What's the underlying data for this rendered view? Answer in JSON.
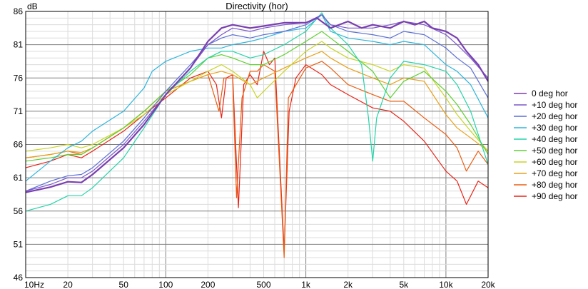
{
  "chart_data": {
    "type": "line",
    "title": "Directivity (hor)",
    "ylabel": "dB",
    "xscale": "log",
    "xlim": [
      10,
      20000
    ],
    "ylim": [
      46,
      86
    ],
    "y_ticks": [
      "46",
      "51",
      "56",
      "61",
      "66",
      "71",
      "76",
      "81",
      "86"
    ],
    "x_ticks": [
      {
        "value": 10,
        "label": "10Hz"
      },
      {
        "value": 20,
        "label": "20"
      },
      {
        "value": 50,
        "label": "50"
      },
      {
        "value": 100,
        "label": "100"
      },
      {
        "value": 200,
        "label": "200"
      },
      {
        "value": 500,
        "label": "500"
      },
      {
        "value": 1000,
        "label": "1k"
      },
      {
        "value": 2000,
        "label": "2k"
      },
      {
        "value": 5000,
        "label": "5k"
      },
      {
        "value": 10000,
        "label": "10k"
      },
      {
        "value": 20000,
        "label": "20k"
      }
    ],
    "grid": true,
    "legend_position": "right",
    "series": [
      {
        "name": "0 deg hor",
        "color": "#7a3fb0",
        "points": [
          [
            10,
            58.8
          ],
          [
            15,
            59.6
          ],
          [
            20,
            60.4
          ],
          [
            25,
            60.3
          ],
          [
            30,
            61.5
          ],
          [
            50,
            65.5
          ],
          [
            70,
            69
          ],
          [
            100,
            73.5
          ],
          [
            150,
            77.5
          ],
          [
            200,
            81.5
          ],
          [
            250,
            83.5
          ],
          [
            300,
            84
          ],
          [
            400,
            83.5
          ],
          [
            500,
            83.8
          ],
          [
            700,
            84.3
          ],
          [
            1000,
            84.3
          ],
          [
            1200,
            85
          ],
          [
            1500,
            83.5
          ],
          [
            2000,
            84.5
          ],
          [
            2500,
            83.5
          ],
          [
            3000,
            84
          ],
          [
            4000,
            83.5
          ],
          [
            5000,
            84.5
          ],
          [
            6000,
            84
          ],
          [
            7000,
            84.5
          ],
          [
            8000,
            83.5
          ],
          [
            10000,
            83
          ],
          [
            12000,
            82
          ],
          [
            14000,
            80
          ],
          [
            17000,
            78
          ],
          [
            20000,
            75.5
          ]
        ]
      },
      {
        "name": "+10 deg hor",
        "color": "#7b57c9",
        "points": [
          [
            10,
            59
          ],
          [
            15,
            60
          ],
          [
            20,
            61
          ],
          [
            25,
            61
          ],
          [
            30,
            62
          ],
          [
            50,
            66
          ],
          [
            70,
            69.5
          ],
          [
            100,
            73.5
          ],
          [
            150,
            77.5
          ],
          [
            200,
            81
          ],
          [
            250,
            82.5
          ],
          [
            300,
            83.5
          ],
          [
            400,
            83
          ],
          [
            500,
            83.5
          ],
          [
            700,
            84
          ],
          [
            1000,
            84.3
          ],
          [
            1300,
            85.5
          ],
          [
            1500,
            84
          ],
          [
            2000,
            83.5
          ],
          [
            3000,
            83.5
          ],
          [
            4000,
            84
          ],
          [
            5000,
            84.5
          ],
          [
            7000,
            84
          ],
          [
            10000,
            82.5
          ],
          [
            12000,
            81
          ],
          [
            15000,
            79
          ],
          [
            20000,
            76
          ]
        ]
      },
      {
        "name": "+20 deg hor",
        "color": "#5a6fd6",
        "points": [
          [
            10,
            59
          ],
          [
            15,
            60.5
          ],
          [
            20,
            61.3
          ],
          [
            25,
            61.5
          ],
          [
            30,
            62.5
          ],
          [
            50,
            66.5
          ],
          [
            70,
            70
          ],
          [
            100,
            74
          ],
          [
            150,
            78
          ],
          [
            200,
            81
          ],
          [
            250,
            82
          ],
          [
            300,
            82.5
          ],
          [
            400,
            82
          ],
          [
            500,
            82.5
          ],
          [
            700,
            83
          ],
          [
            1000,
            84
          ],
          [
            1300,
            85.5
          ],
          [
            1500,
            84
          ],
          [
            2000,
            83
          ],
          [
            3000,
            82.5
          ],
          [
            4000,
            82
          ],
          [
            5000,
            83
          ],
          [
            7000,
            82.5
          ],
          [
            10000,
            80.5
          ],
          [
            12000,
            79
          ],
          [
            15000,
            77.5
          ],
          [
            20000,
            73
          ]
        ]
      },
      {
        "name": "+30 deg hor",
        "color": "#2cb5dc",
        "points": [
          [
            10,
            60.5
          ],
          [
            15,
            63.5
          ],
          [
            20,
            65.5
          ],
          [
            25,
            66.5
          ],
          [
            30,
            68
          ],
          [
            50,
            71
          ],
          [
            70,
            74.5
          ],
          [
            80,
            77
          ],
          [
            100,
            78.5
          ],
          [
            150,
            80
          ],
          [
            200,
            80.5
          ],
          [
            250,
            80.5
          ],
          [
            300,
            81
          ],
          [
            400,
            81.5
          ],
          [
            500,
            82
          ],
          [
            700,
            83
          ],
          [
            1000,
            83.5
          ],
          [
            1300,
            85.5
          ],
          [
            1500,
            83
          ],
          [
            2000,
            82
          ],
          [
            3000,
            81.5
          ],
          [
            4000,
            81
          ],
          [
            5000,
            81.5
          ],
          [
            7000,
            81
          ],
          [
            10000,
            78
          ],
          [
            12000,
            77
          ],
          [
            15000,
            75
          ],
          [
            20000,
            70
          ]
        ]
      },
      {
        "name": "+40 deg hor",
        "color": "#22d4a8",
        "points": [
          [
            10,
            56
          ],
          [
            15,
            57
          ],
          [
            20,
            58.3
          ],
          [
            25,
            58.3
          ],
          [
            30,
            59.5
          ],
          [
            50,
            64
          ],
          [
            70,
            68.5
          ],
          [
            100,
            73.5
          ],
          [
            150,
            77
          ],
          [
            200,
            79
          ],
          [
            250,
            80
          ],
          [
            300,
            80
          ],
          [
            400,
            79
          ],
          [
            500,
            79.5
          ],
          [
            700,
            81
          ],
          [
            1000,
            83
          ],
          [
            1300,
            85.8
          ],
          [
            1500,
            83.5
          ],
          [
            2000,
            81
          ],
          [
            2500,
            78
          ],
          [
            2800,
            70
          ],
          [
            3000,
            63.5
          ],
          [
            3200,
            70
          ],
          [
            4000,
            76
          ],
          [
            5000,
            78.5
          ],
          [
            7000,
            78
          ],
          [
            10000,
            77
          ],
          [
            12000,
            75
          ],
          [
            15000,
            71
          ],
          [
            20000,
            63
          ]
        ]
      },
      {
        "name": "+50 deg hor",
        "color": "#5ed030",
        "points": [
          [
            10,
            63.5
          ],
          [
            15,
            64
          ],
          [
            20,
            64.5
          ],
          [
            25,
            64.5
          ],
          [
            30,
            65.5
          ],
          [
            50,
            68.5
          ],
          [
            70,
            71
          ],
          [
            100,
            74
          ],
          [
            150,
            76.5
          ],
          [
            200,
            79
          ],
          [
            250,
            79.5
          ],
          [
            300,
            79
          ],
          [
            400,
            78
          ],
          [
            500,
            78
          ],
          [
            700,
            79.5
          ],
          [
            1000,
            81.5
          ],
          [
            1300,
            83
          ],
          [
            1500,
            82
          ],
          [
            2000,
            80
          ],
          [
            3000,
            77
          ],
          [
            4000,
            73
          ],
          [
            5000,
            75.5
          ],
          [
            7000,
            77
          ],
          [
            10000,
            74
          ],
          [
            12000,
            72
          ],
          [
            15000,
            69
          ],
          [
            20000,
            64.5
          ]
        ]
      },
      {
        "name": "+60 deg hor",
        "color": "#c8d425",
        "points": [
          [
            10,
            65
          ],
          [
            15,
            65.5
          ],
          [
            20,
            66
          ],
          [
            25,
            65.5
          ],
          [
            30,
            66
          ],
          [
            50,
            68.5
          ],
          [
            70,
            70.5
          ],
          [
            100,
            73.5
          ],
          [
            150,
            75.5
          ],
          [
            200,
            77
          ],
          [
            250,
            78
          ],
          [
            300,
            77
          ],
          [
            400,
            75
          ],
          [
            450,
            73
          ],
          [
            500,
            74
          ],
          [
            700,
            77
          ],
          [
            1000,
            80
          ],
          [
            1300,
            81.5
          ],
          [
            1500,
            80.5
          ],
          [
            2000,
            79
          ],
          [
            3000,
            78
          ],
          [
            4000,
            77
          ],
          [
            5000,
            78
          ],
          [
            7000,
            77.5
          ],
          [
            10000,
            73
          ],
          [
            12000,
            70.5
          ],
          [
            15000,
            68
          ],
          [
            20000,
            65
          ]
        ]
      },
      {
        "name": "+70 deg hor",
        "color": "#e8a018",
        "points": [
          [
            10,
            64
          ],
          [
            15,
            64.5
          ],
          [
            20,
            65
          ],
          [
            25,
            64.8
          ],
          [
            30,
            65.5
          ],
          [
            50,
            68.5
          ],
          [
            70,
            71
          ],
          [
            100,
            74
          ],
          [
            150,
            75.5
          ],
          [
            200,
            76.5
          ],
          [
            250,
            77
          ],
          [
            300,
            76.5
          ],
          [
            400,
            75
          ],
          [
            500,
            76
          ],
          [
            700,
            77.5
          ],
          [
            1000,
            79
          ],
          [
            1300,
            80
          ],
          [
            1500,
            79
          ],
          [
            2000,
            77.5
          ],
          [
            3000,
            76
          ],
          [
            4000,
            75
          ],
          [
            5000,
            76
          ],
          [
            7000,
            75.5
          ],
          [
            10000,
            70.5
          ],
          [
            12000,
            68.5
          ],
          [
            15000,
            67
          ],
          [
            20000,
            65
          ]
        ]
      },
      {
        "name": "+80 deg hor",
        "color": "#e85e12",
        "points": [
          [
            10,
            64
          ],
          [
            15,
            64.5
          ],
          [
            20,
            65
          ],
          [
            25,
            64.5
          ],
          [
            30,
            65.5
          ],
          [
            50,
            68.5
          ],
          [
            70,
            71
          ],
          [
            100,
            74
          ],
          [
            150,
            75.5
          ],
          [
            200,
            76.5
          ],
          [
            240,
            71
          ],
          [
            260,
            76
          ],
          [
            300,
            76
          ],
          [
            320,
            58
          ],
          [
            350,
            73
          ],
          [
            400,
            77
          ],
          [
            450,
            77
          ],
          [
            500,
            78
          ],
          [
            600,
            77
          ],
          [
            700,
            49
          ],
          [
            750,
            73
          ],
          [
            1000,
            77.5
          ],
          [
            1300,
            78.5
          ],
          [
            1500,
            77.5
          ],
          [
            2000,
            75
          ],
          [
            3000,
            73.5
          ],
          [
            4000,
            72.5
          ],
          [
            5000,
            72.5
          ],
          [
            7000,
            70
          ],
          [
            10000,
            67.5
          ],
          [
            12000,
            65.5
          ],
          [
            14000,
            62
          ],
          [
            17000,
            65
          ],
          [
            20000,
            63
          ]
        ]
      },
      {
        "name": "+90 deg hor",
        "color": "#e82418",
        "points": [
          [
            10,
            62.5
          ],
          [
            15,
            63.5
          ],
          [
            20,
            64.5
          ],
          [
            25,
            64
          ],
          [
            30,
            65
          ],
          [
            50,
            68
          ],
          [
            70,
            70.5
          ],
          [
            100,
            73
          ],
          [
            150,
            76
          ],
          [
            200,
            77
          ],
          [
            230,
            75
          ],
          [
            250,
            70
          ],
          [
            270,
            76
          ],
          [
            300,
            76.5
          ],
          [
            330,
            56.5
          ],
          [
            360,
            75
          ],
          [
            400,
            76.5
          ],
          [
            450,
            75
          ],
          [
            500,
            80
          ],
          [
            550,
            78
          ],
          [
            600,
            79
          ],
          [
            700,
            50
          ],
          [
            760,
            71
          ],
          [
            850,
            76
          ],
          [
            1000,
            78
          ],
          [
            1300,
            76.5
          ],
          [
            1500,
            75
          ],
          [
            2000,
            73.5
          ],
          [
            3000,
            71.5
          ],
          [
            4000,
            71
          ],
          [
            5000,
            69.5
          ],
          [
            7000,
            66.5
          ],
          [
            10000,
            62
          ],
          [
            12000,
            60.5
          ],
          [
            14000,
            57
          ],
          [
            17000,
            60.5
          ],
          [
            20000,
            59.5
          ]
        ]
      }
    ]
  }
}
